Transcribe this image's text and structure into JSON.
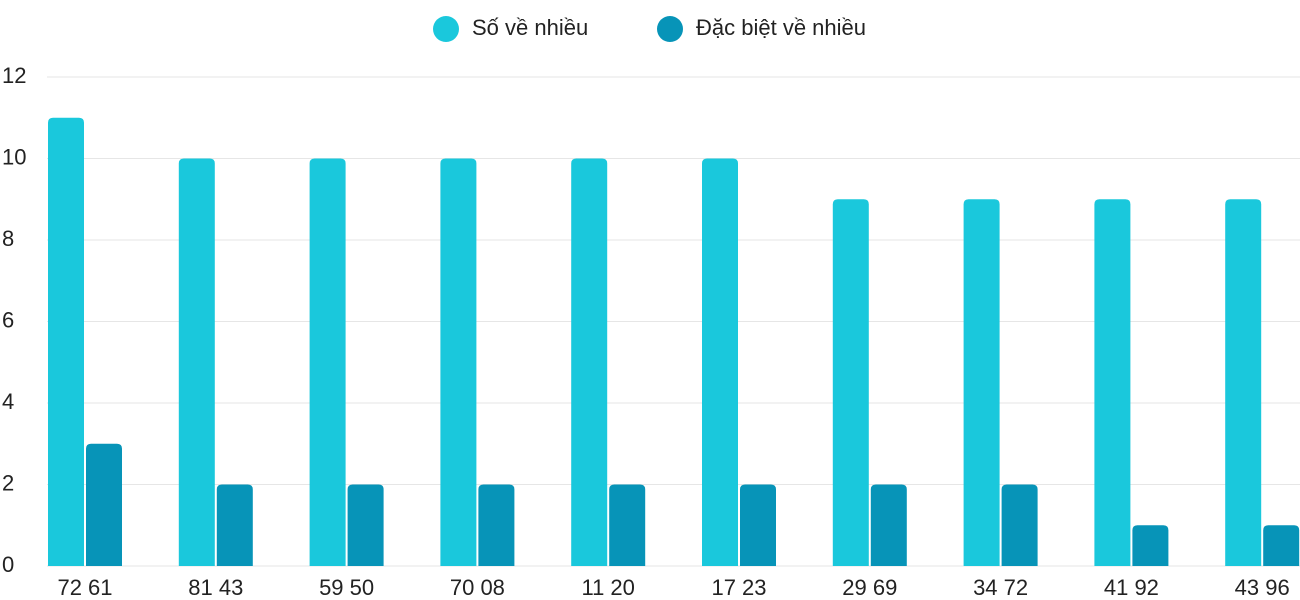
{
  "chart_data": {
    "type": "bar",
    "categories": [
      "72 61",
      "81 43",
      "59 50",
      "70 08",
      "11 20",
      "17 23",
      "29 69",
      "34 72",
      "41 92",
      "43 96"
    ],
    "series": [
      {
        "name": "Số về nhiều",
        "color": "#1ac8dc",
        "values": [
          11,
          10,
          10,
          10,
          10,
          10,
          9,
          9,
          9,
          9
        ]
      },
      {
        "name": "Đặc biệt về nhiều",
        "color": "#0794b8",
        "values": [
          3,
          2,
          2,
          2,
          2,
          2,
          2,
          2,
          1,
          1
        ]
      }
    ],
    "ylim": [
      0,
      12
    ],
    "yticks": [
      0,
      2,
      4,
      6,
      8,
      10,
      12
    ],
    "grid": true,
    "legend": "top"
  }
}
